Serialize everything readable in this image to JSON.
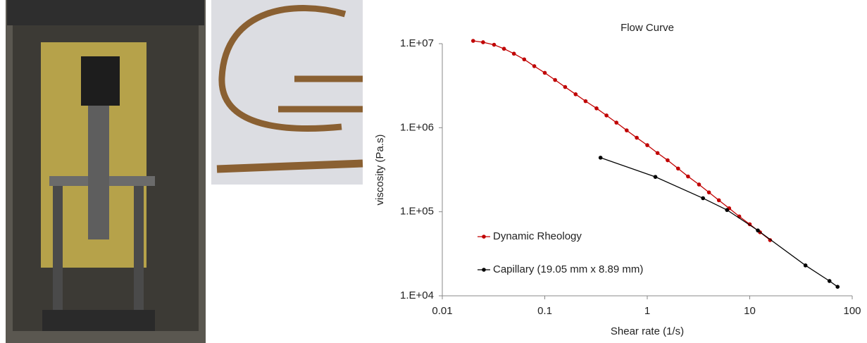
{
  "chart_data": {
    "type": "line",
    "title": "Flow Curve",
    "x_label": "Shear rate (1/s)",
    "y_label": "viscosity (Pa.s)",
    "log_x": true,
    "log_y": true,
    "grid": false,
    "legend": "bottom-left",
    "xlim": [
      0.01,
      100
    ],
    "xticks": [
      0.01,
      0.1,
      1,
      10,
      100
    ],
    "ylim": [
      10000,
      10000000
    ],
    "yticks": [
      {
        "value": 10000,
        "label": "1.E+04"
      },
      {
        "value": 100000,
        "label": "1.E+05"
      },
      {
        "value": 1000000,
        "label": "1.E+06"
      },
      {
        "value": 10000000,
        "label": "1.E+07"
      }
    ],
    "series": [
      {
        "name": "Dynamic Rheology",
        "color": "#c00000",
        "x": [
          0.02,
          0.025,
          0.032,
          0.04,
          0.05,
          0.063,
          0.079,
          0.1,
          0.126,
          0.158,
          0.2,
          0.25,
          0.32,
          0.4,
          0.5,
          0.63,
          0.79,
          1,
          1.26,
          1.58,
          2,
          2.5,
          3.2,
          4,
          5,
          6.3,
          7.9,
          10,
          12.6,
          15.8
        ],
        "values": [
          10800000,
          10400000,
          9700000,
          8700000,
          7600000,
          6500000,
          5400000,
          4500000,
          3700000,
          3050000,
          2500000,
          2070000,
          1700000,
          1400000,
          1150000,
          930000,
          760000,
          620000,
          500000,
          410000,
          327000,
          263000,
          211000,
          170000,
          137000,
          110000,
          88000,
          71000,
          57000,
          46000
        ]
      },
      {
        "name": "Capillary (19.05 mm x 8.89 mm)",
        "color": "#000000",
        "x": [
          0.35,
          1.2,
          3.5,
          6,
          12,
          35,
          60,
          72
        ],
        "values": [
          440000,
          260000,
          145000,
          105000,
          60000,
          23000,
          15000,
          12800
        ]
      }
    ]
  }
}
